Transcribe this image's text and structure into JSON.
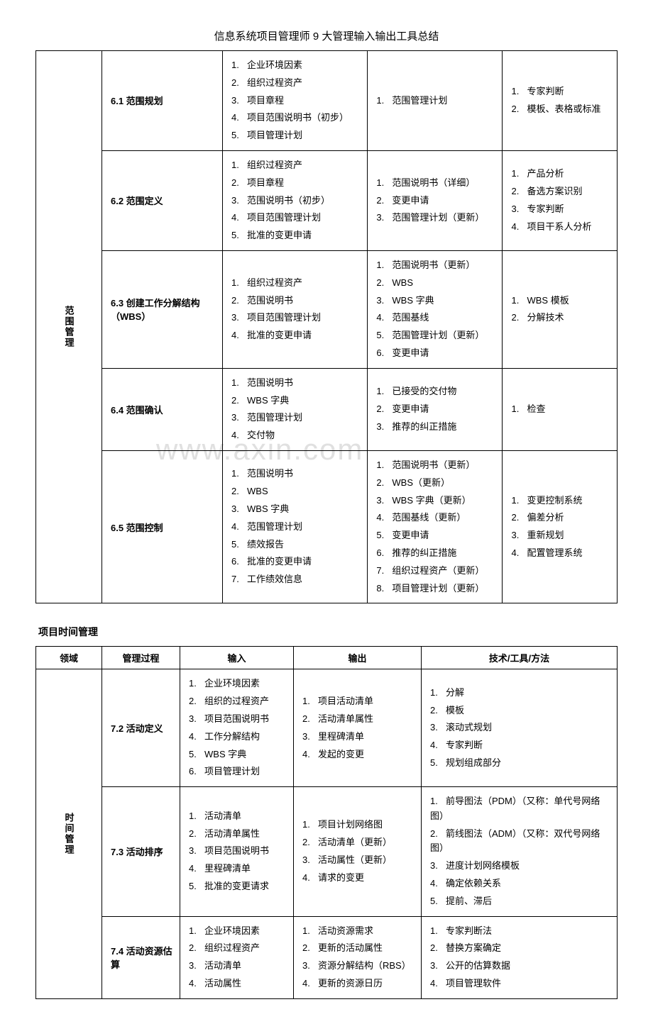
{
  "pageTitle": "信息系统项目管理师 9 大管理输入输出工具总结",
  "watermark": "www.axin.com",
  "table1": {
    "domain": "范围管理",
    "rows": [
      {
        "process": "6.1 范围规划",
        "inputs": [
          "企业环境因素",
          "组织过程资产",
          "项目章程",
          "项目范围说明书（初步）",
          "项目管理计划"
        ],
        "outputs": [
          "范围管理计划"
        ],
        "tools": [
          "专家判断",
          "模板、表格或标准"
        ]
      },
      {
        "process": "6.2 范围定义",
        "inputs": [
          "组织过程资产",
          "项目章程",
          "范围说明书（初步）",
          "项目范围管理计划",
          "批准的变更申请"
        ],
        "outputs": [
          "范围说明书（详细）",
          "变更申请",
          "范围管理计划（更新）"
        ],
        "tools": [
          "产品分析",
          "备选方案识别",
          "专家判断",
          "项目干系人分析"
        ]
      },
      {
        "process": "6.3 创建工作分解结构（WBS）",
        "inputs": [
          "组织过程资产",
          "范围说明书",
          "项目范围管理计划",
          "批准的变更申请"
        ],
        "outputs": [
          "范围说明书（更新）",
          "WBS",
          "WBS 字典",
          "范围基线",
          "范围管理计划（更新）",
          "变更申请"
        ],
        "tools": [
          "WBS 模板",
          "分解技术"
        ]
      },
      {
        "process": "6.4 范围确认",
        "inputs": [
          "范围说明书",
          "WBS 字典",
          "范围管理计划",
          "交付物"
        ],
        "outputs": [
          "已接受的交付物",
          "变更申请",
          "推荐的纠正措施"
        ],
        "tools": [
          "检查"
        ]
      },
      {
        "process": "6.5 范围控制",
        "inputs": [
          "范围说明书",
          "WBS",
          "WBS 字典",
          "范围管理计划",
          "绩效报告",
          "批准的变更申请",
          "工作绩效信息"
        ],
        "outputs": [
          "范围说明书（更新）",
          "WBS（更新）",
          "WBS 字典（更新）",
          "范围基线（更新）",
          "变更申请",
          "推荐的纠正措施",
          "组织过程资产（更新）",
          "项目管理计划（更新）"
        ],
        "tools": [
          "变更控制系统",
          "偏差分析",
          "重新规划",
          "配置管理系统"
        ]
      }
    ]
  },
  "section2Title": "项目时间管理",
  "table2": {
    "headers": [
      "领域",
      "管理过程",
      "输入",
      "输出",
      "技术/工具/方法"
    ],
    "domain": "时间管理",
    "rows": [
      {
        "process": "7.2 活动定义",
        "inputs": [
          "企业环境因素",
          "组织的过程资产",
          "项目范围说明书",
          "工作分解结构",
          "WBS 字典",
          "项目管理计划"
        ],
        "outputs": [
          "项目活动清单",
          "活动清单属性",
          "里程碑清单",
          "发起的变更"
        ],
        "tools": [
          "分解",
          "模板",
          "滚动式规划",
          "专家判断",
          "规划组成部分"
        ]
      },
      {
        "process": "7.3 活动排序",
        "inputs": [
          "活动清单",
          "活动清单属性",
          "项目范围说明书",
          "里程碑清单",
          "批准的变更请求"
        ],
        "outputs": [
          "项目计划网络图",
          "活动清单（更新）",
          "活动属性（更新）",
          "请求的变更"
        ],
        "tools": [
          "前导图法（PDM）（又称：单代号网络图）",
          "箭线图法（ADM）（又称：双代号网络图）",
          "进度计划网络模板",
          "确定依赖关系",
          "提前、滞后"
        ]
      },
      {
        "process": "7.4 活动资源估算",
        "inputs": [
          "企业环境因素",
          "组织过程资产",
          "活动清单",
          "活动属性"
        ],
        "outputs": [
          "活动资源需求",
          "更新的活动属性",
          "资源分解结构（RBS）",
          "更新的资源日历"
        ],
        "tools": [
          "专家判断法",
          "替换方案确定",
          "公开的估算数据",
          "项目管理软件"
        ]
      }
    ]
  }
}
